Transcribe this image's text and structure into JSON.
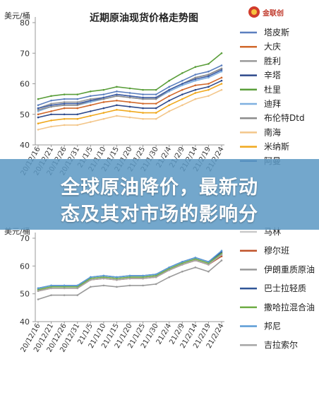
{
  "logo": {
    "text": "金联创"
  },
  "banner": {
    "line1": "全球原油降价，最新动",
    "line2": "态及其对市场的影响分"
  },
  "chart_data": [
    {
      "type": "line",
      "title": "近期原油现货价格走势图",
      "ylabel": "美元/桶",
      "ylim": [
        40,
        80
      ],
      "yticks": [
        40,
        50,
        60,
        70,
        80
      ],
      "grid": false,
      "legend_position": "right",
      "categories": [
        "20/12/16",
        "20/12/21",
        "20/12/26",
        "20/12/31",
        "21/1/5",
        "21/1/10",
        "21/1/15",
        "21/1/20",
        "21/1/25",
        "21/1/30",
        "21/2/4",
        "21/2/9",
        "21/2/14",
        "21/2/19",
        "21/2/24"
      ],
      "series": [
        {
          "name": "塔皮斯",
          "color": "#5b7fbf",
          "values": [
            53,
            54.5,
            55,
            55,
            56,
            56.5,
            57.5,
            57,
            56.5,
            56.5,
            59,
            61,
            63,
            64,
            66
          ]
        },
        {
          "name": "大庆",
          "color": "#d1682b",
          "values": [
            50,
            51,
            52,
            52,
            53,
            54,
            54.5,
            54,
            53.5,
            53.5,
            56,
            58,
            59.5,
            60,
            62
          ]
        },
        {
          "name": "胜利",
          "color": "#9a9a9a",
          "values": [
            52,
            53.5,
            54,
            54,
            55,
            55.5,
            56.5,
            56,
            55.5,
            55.5,
            58,
            60,
            62,
            63,
            65
          ]
        },
        {
          "name": "辛塔",
          "color": "#2e4a8c",
          "values": [
            49,
            50,
            50,
            50,
            51,
            52,
            53,
            52.5,
            52,
            52,
            54.5,
            56.5,
            58,
            59,
            61
          ]
        },
        {
          "name": "杜里",
          "color": "#5a9e3a",
          "values": [
            55,
            56,
            56.5,
            56.5,
            57.5,
            58,
            59,
            58.5,
            58,
            58,
            61,
            63.5,
            65.5,
            66.5,
            70
          ]
        },
        {
          "name": "迪拜",
          "color": "#7fb0e0",
          "values": [
            51,
            52.5,
            53,
            53,
            54,
            55,
            56,
            55.5,
            55,
            55,
            57.5,
            59.5,
            61,
            62,
            64
          ]
        },
        {
          "name": "布伦特Dtd",
          "color": "#8c8c8c",
          "values": [
            51.5,
            52.5,
            53,
            53,
            54.5,
            55,
            56,
            55.5,
            55,
            55,
            58,
            60,
            62,
            63,
            65
          ]
        },
        {
          "name": "南海",
          "color": "#f3c68a",
          "values": [
            45,
            46,
            46.5,
            46.5,
            47.5,
            48.5,
            49.5,
            49,
            48.5,
            48.5,
            51,
            53,
            55,
            56,
            58
          ]
        },
        {
          "name": "米纳斯",
          "color": "#f0a81c",
          "values": [
            47,
            48,
            48.5,
            48.5,
            49.5,
            50.5,
            51.5,
            51,
            50.5,
            50.5,
            53,
            55,
            57,
            58,
            60
          ]
        },
        {
          "name": "阿曼",
          "color": "#3d5ea8",
          "values": [
            52,
            53,
            53.5,
            53.5,
            54.5,
            55.5,
            56.5,
            56,
            55.5,
            55.5,
            58,
            60,
            61.5,
            62.5,
            64.5
          ]
        }
      ]
    },
    {
      "type": "line",
      "ylabel": "美元/桶",
      "ylim": [
        40,
        70
      ],
      "yticks": [
        40,
        50,
        60,
        70
      ],
      "grid": false,
      "legend_position": "right",
      "categories": [
        "20/12/16",
        "20/12/21",
        "20/12/26",
        "20/12/31",
        "21/1/5",
        "21/1/10",
        "21/1/15",
        "21/1/20",
        "21/1/25",
        "21/1/30",
        "21/2/4",
        "21/2/9",
        "21/2/14",
        "21/2/19",
        "21/2/24"
      ],
      "series": [
        {
          "name": "马林",
          "color": "#c9c9c9",
          "values": [
            51.5,
            52.5,
            52.5,
            52.5,
            55.5,
            56,
            55.5,
            56,
            56,
            56.5,
            59,
            61,
            62.5,
            61,
            64
          ]
        },
        {
          "name": "穆尔班",
          "color": "#c0532a",
          "values": [
            51,
            52,
            52,
            52,
            55,
            55.5,
            55,
            55.5,
            55.5,
            56,
            58.5,
            60.5,
            62,
            60.5,
            63.5
          ]
        },
        {
          "name": "伊朗重质原油",
          "color": "#9a9a9a",
          "values": [
            48,
            49.5,
            49.5,
            49.5,
            52.5,
            53,
            52.5,
            53,
            53,
            53.5,
            56,
            58,
            59.5,
            58,
            62
          ]
        },
        {
          "name": "巴士拉轻质",
          "color": "#2f5597",
          "values": [
            52,
            53,
            53,
            53,
            56,
            56.5,
            56,
            56.5,
            56.5,
            57,
            59.5,
            61.5,
            63,
            61.5,
            65
          ]
        },
        {
          "name": "撒哈拉混合油",
          "color": "#70ad47",
          "values": [
            51.5,
            52.5,
            52.5,
            52.5,
            55.5,
            56,
            55.5,
            56,
            56,
            56.5,
            59,
            61,
            62.5,
            61,
            64.5
          ]
        },
        {
          "name": "邦尼",
          "color": "#5b9bd5",
          "values": [
            52,
            53,
            53,
            53,
            56,
            56.5,
            56,
            56.5,
            56.5,
            57,
            59.5,
            61.5,
            63,
            61.5,
            65.5
          ]
        },
        {
          "name": "吉拉索尔",
          "color": "#a5a5a5",
          "values": [
            51,
            52,
            52,
            52,
            55,
            55.5,
            55,
            55.5,
            55.5,
            56,
            58.5,
            60.5,
            62,
            60.5,
            64
          ]
        }
      ]
    }
  ]
}
